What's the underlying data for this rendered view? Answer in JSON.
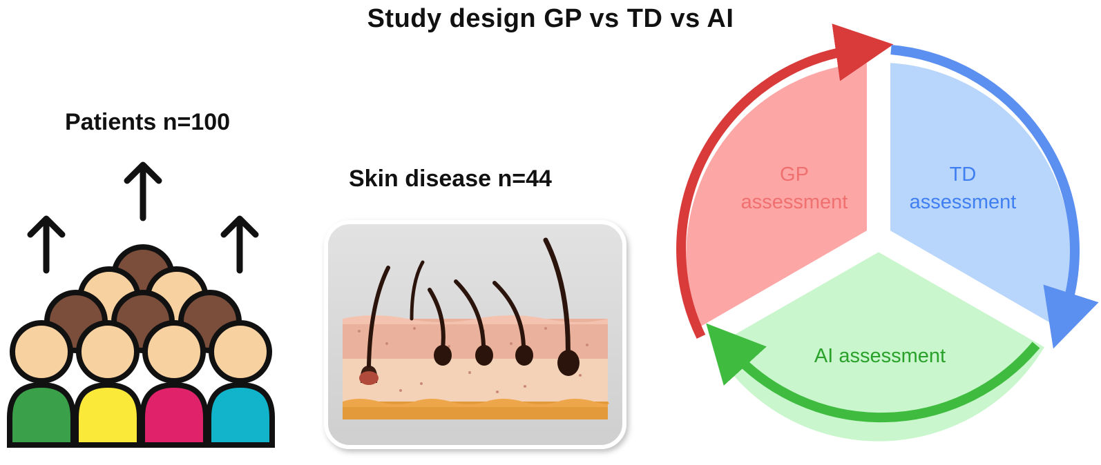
{
  "title": "Study design GP vs TD vs AI",
  "patients": {
    "label": "Patients n=100"
  },
  "skin": {
    "label": "Skin disease n=44"
  },
  "cycle": {
    "segments": [
      {
        "line1": "GP",
        "line2": "assessment",
        "fill": "#fca6a6",
        "text_color": "#f07070",
        "arrow_color": "#d93a3a"
      },
      {
        "line1": "TD",
        "line2": "assessment",
        "fill": "#b8d5fb",
        "text_color": "#3f7ff2",
        "arrow_color": "#5b8ff0"
      },
      {
        "line1": "AI assessment",
        "line2": "",
        "fill": "#c9f6cc",
        "text_color": "#2aa12a",
        "arrow_color": "#3fbb3f"
      }
    ]
  },
  "people_colors": {
    "skin": "#f7d2a0",
    "hair": "#7a4e3a",
    "shirts": [
      "#3aa049",
      "#fbe93a",
      "#e0226a",
      "#11b4cb"
    ]
  },
  "icons": [
    "up-arrow-icon",
    "people-group-icon",
    "skin-hair-icon",
    "cycle-arrow-icon"
  ]
}
